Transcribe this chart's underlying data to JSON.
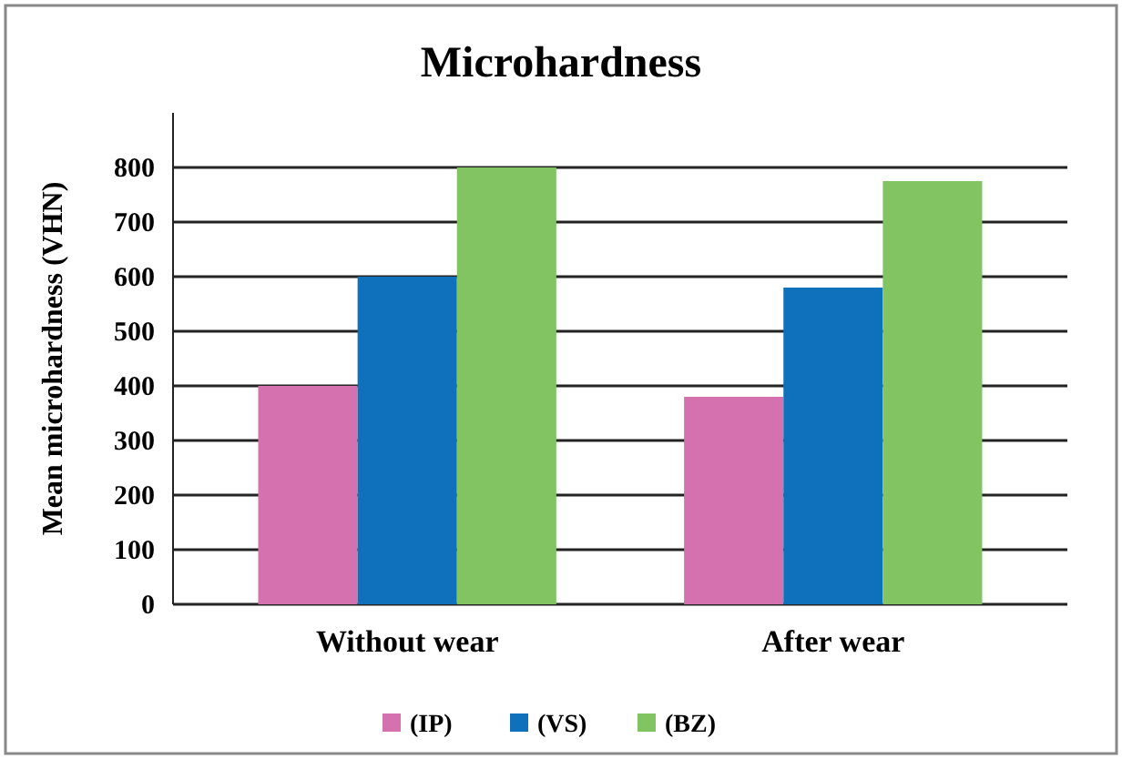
{
  "chart_data": {
    "type": "bar",
    "title": "Microhardness",
    "ylabel": "Mean microhardness (VHN)",
    "categories": [
      "Without wear",
      "After wear"
    ],
    "series": [
      {
        "name": "(IP)",
        "color": "#d471ae",
        "values": [
          400,
          380
        ]
      },
      {
        "name": "(VS)",
        "color": "#0f70bc",
        "values": [
          600,
          580
        ]
      },
      {
        "name": "(BZ)",
        "color": "#82c462",
        "values": [
          800,
          775
        ]
      }
    ],
    "ylim": [
      0,
      900
    ],
    "yticks": [
      0,
      100,
      200,
      300,
      400,
      500,
      600,
      700,
      800
    ],
    "grid": "y",
    "legend": "bottom"
  }
}
